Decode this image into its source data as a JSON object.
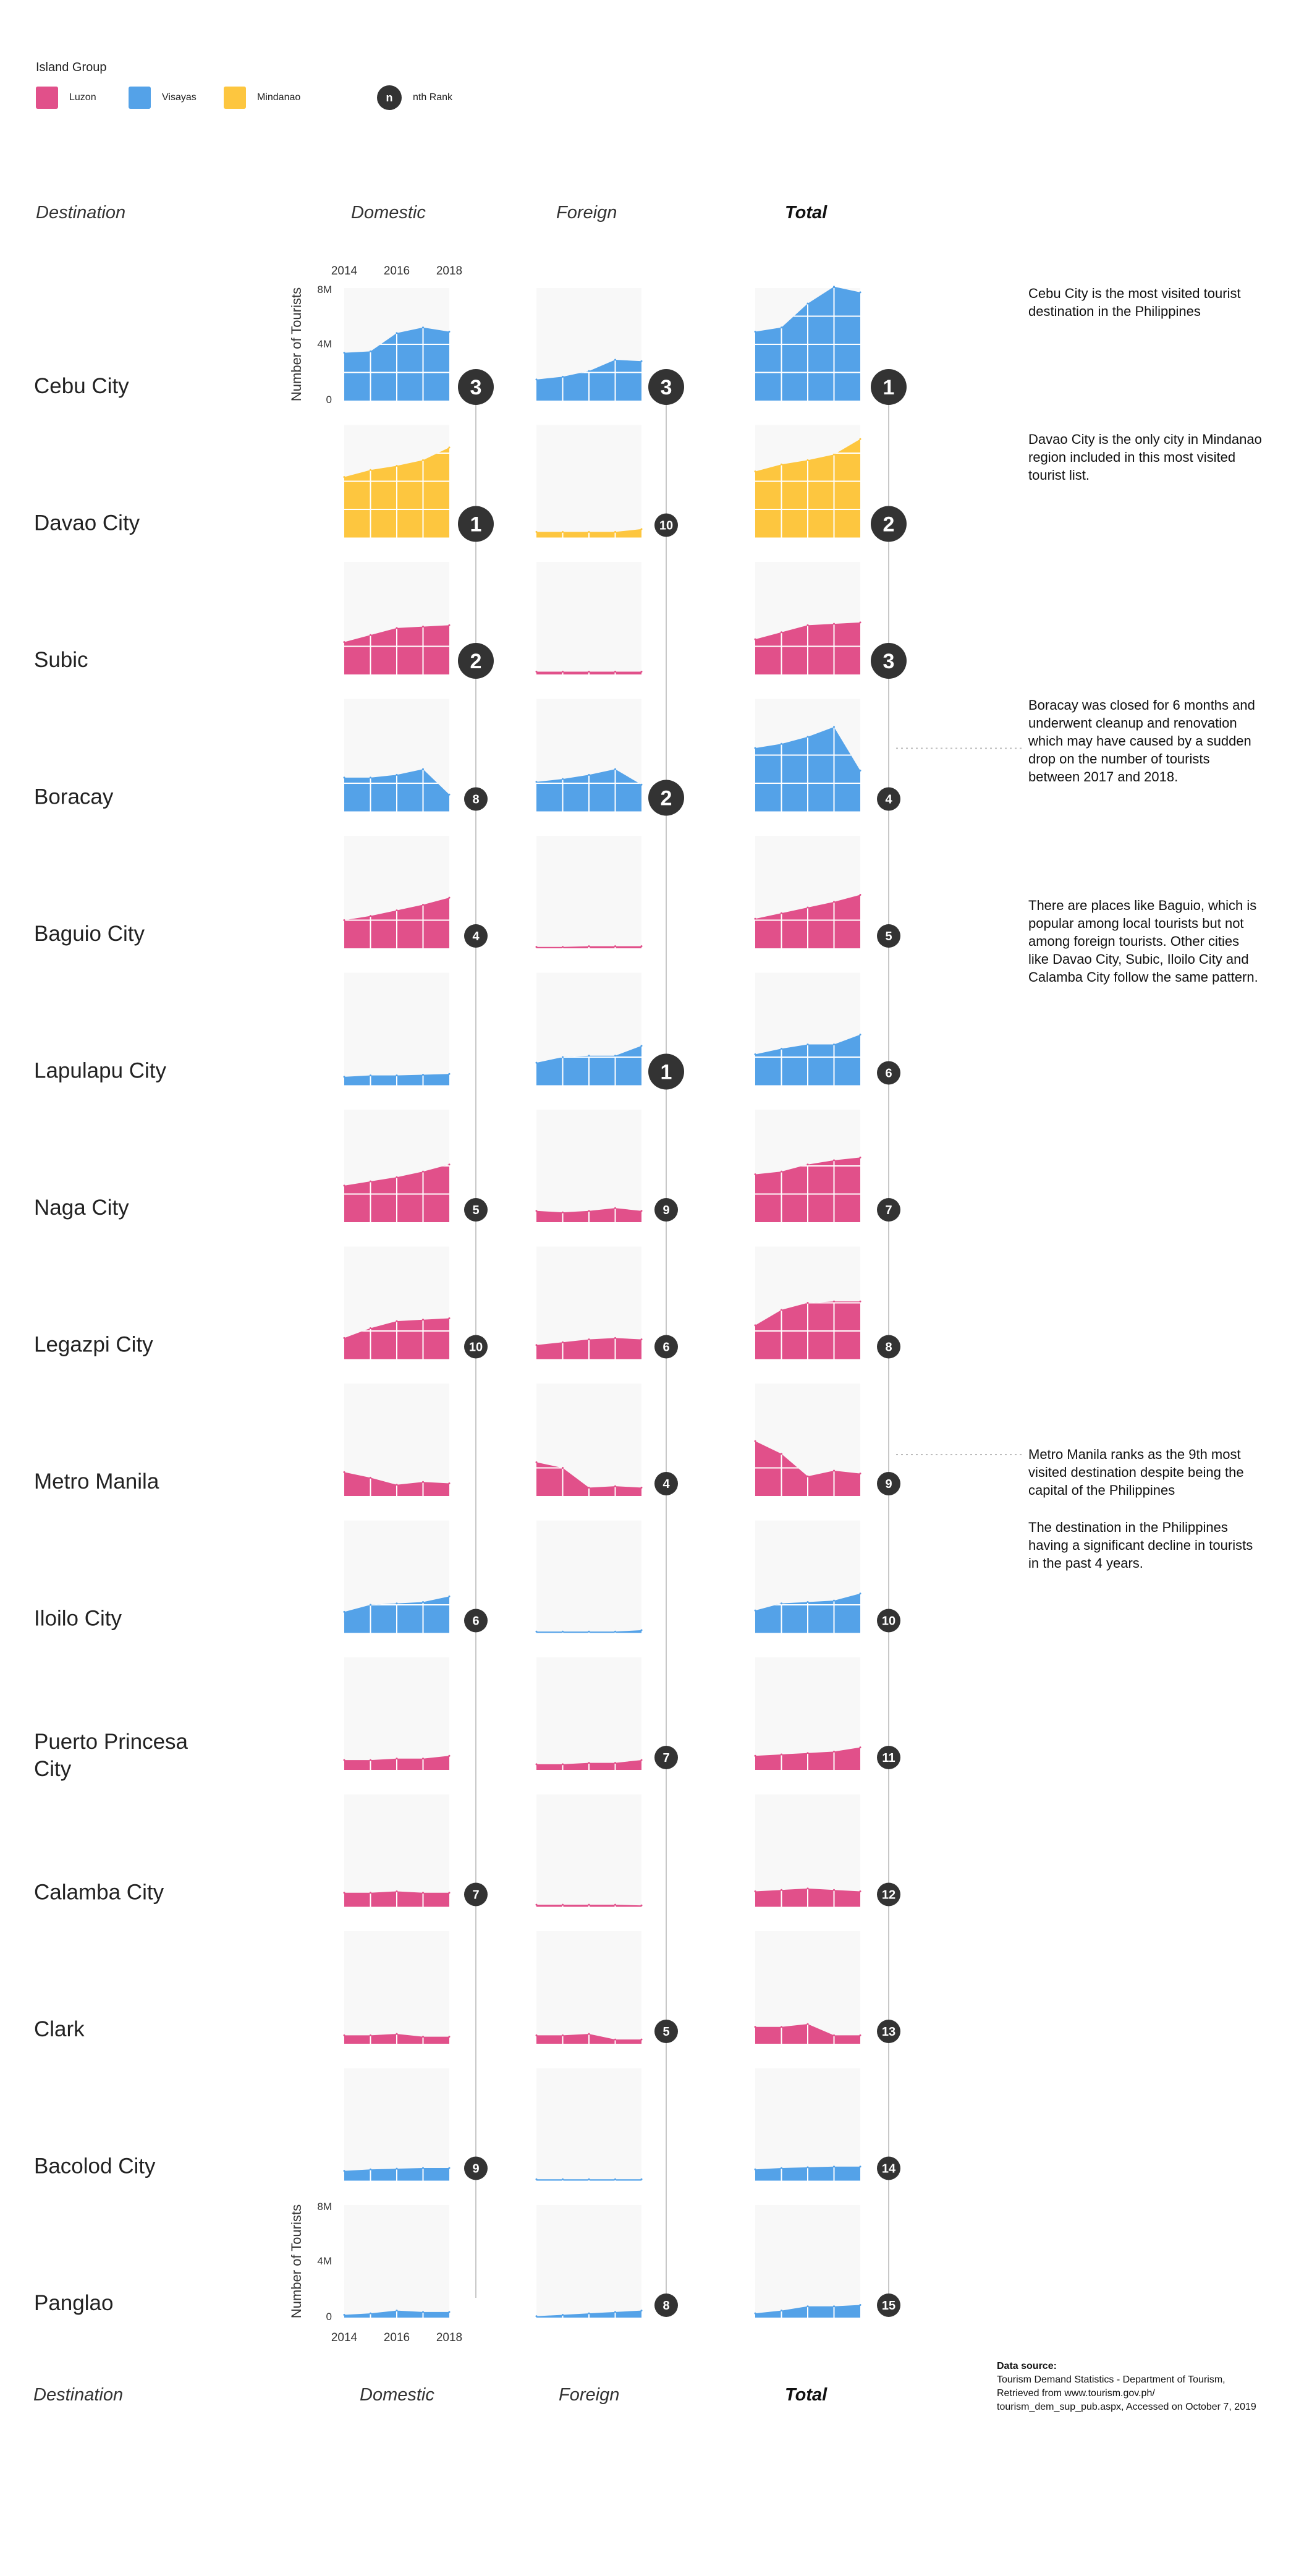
{
  "legend": {
    "title": "Island Group",
    "items": [
      {
        "label": "Luzon",
        "color": "#e1508a"
      },
      {
        "label": "Visayas",
        "color": "#54a2e8"
      },
      {
        "label": "Mindanao",
        "color": "#fdc63f"
      }
    ],
    "rank_symbol": "n",
    "rank_label": "nth Rank"
  },
  "columns": {
    "destination": "Destination",
    "domestic": "Domestic",
    "foreign": "Foreign",
    "total": "Total"
  },
  "axis": {
    "ylabel": "Number of Tourists",
    "years": [
      "2014",
      "2016",
      "2018"
    ],
    "yticks": [
      "8M",
      "4M",
      "0"
    ]
  },
  "notes": {
    "cebu": "Cebu City is the most visited tourist destination in the Philippines",
    "davao": "Davao City is the only city in Mindanao region included in this most visited tourist list.",
    "boracay": "Boracay was closed for 6 months and underwent cleanup and renovation which may have caused by a sudden drop on the number of tourists between 2017 and 2018.",
    "baguio": "There are places like Baguio, which is popular among local tourists but not among foreign tourists. Other cities like Davao City, Subic, Iloilo City and Calamba City follow the same pattern.",
    "manila_1": "Metro Manila ranks as the 9th most visited destination despite being the capital of the Philippines",
    "manila_2": "The destination in the Philippines having a significant decline in tourists in the past 4 years."
  },
  "source": {
    "title": "Data source:",
    "line1": "Tourism Demand Statistics - Department of Tourism,",
    "line2": "Retrieved from www.tourism.gov.ph/",
    "line3": "tourism_dem_sup_pub.aspx, Accessed on October 7, 2019"
  },
  "chart_data": {
    "type": "area",
    "x": [
      2014,
      2015,
      2016,
      2017,
      2018
    ],
    "units": "millions of tourists",
    "ylim": [
      0,
      8
    ],
    "yticks": [
      0,
      4,
      8
    ],
    "destinations": [
      {
        "name": "Cebu City",
        "island": "Visayas",
        "color": "#54a2e8",
        "domestic": [
          3.4,
          3.5,
          4.8,
          5.2,
          4.9
        ],
        "foreign": [
          1.5,
          1.7,
          2.1,
          2.9,
          2.8
        ],
        "total": [
          4.9,
          5.2,
          6.9,
          8.1,
          7.7
        ],
        "rank": {
          "domestic": "3",
          "foreign": "3",
          "total": "1"
        }
      },
      {
        "name": "Davao City",
        "island": "Mindanao",
        "color": "#fdc63f",
        "domestic": [
          4.3,
          4.8,
          5.1,
          5.5,
          6.4
        ],
        "foreign": [
          0.4,
          0.4,
          0.4,
          0.4,
          0.6
        ],
        "total": [
          4.7,
          5.2,
          5.5,
          5.9,
          7.0
        ],
        "rank": {
          "domestic": "1",
          "foreign": "10",
          "total": "2"
        }
      },
      {
        "name": "Subic",
        "island": "Luzon",
        "color": "#e1508a",
        "domestic": [
          2.3,
          2.8,
          3.3,
          3.4,
          3.5
        ],
        "foreign": [
          0.2,
          0.2,
          0.2,
          0.2,
          0.2
        ],
        "total": [
          2.5,
          3.0,
          3.5,
          3.6,
          3.7
        ],
        "rank": {
          "domestic": "2",
          "foreign": "",
          "total": "3"
        }
      },
      {
        "name": "Boracay",
        "island": "Visayas",
        "color": "#54a2e8",
        "domestic": [
          2.4,
          2.4,
          2.6,
          3.0,
          1.2
        ],
        "foreign": [
          2.1,
          2.3,
          2.6,
          3.0,
          1.9
        ],
        "total": [
          4.5,
          4.8,
          5.3,
          6.0,
          2.9
        ],
        "rank": {
          "domestic": "8",
          "foreign": "2",
          "total": "4"
        }
      },
      {
        "name": "Baguio City",
        "island": "Luzon",
        "color": "#e1508a",
        "domestic": [
          2.0,
          2.3,
          2.7,
          3.1,
          3.6
        ],
        "foreign": [
          0.1,
          0.1,
          0.15,
          0.15,
          0.15
        ],
        "total": [
          2.1,
          2.5,
          2.9,
          3.3,
          3.8
        ],
        "rank": {
          "domestic": "4",
          "foreign": "",
          "total": "5"
        }
      },
      {
        "name": "Lapulapu City",
        "island": "Visayas",
        "color": "#54a2e8",
        "domestic": [
          0.6,
          0.7,
          0.7,
          0.75,
          0.8
        ],
        "foreign": [
          1.6,
          2.0,
          2.1,
          2.1,
          2.8
        ],
        "total": [
          2.2,
          2.6,
          2.9,
          2.9,
          3.6
        ],
        "rank": {
          "domestic": "",
          "foreign": "1",
          "total": "6"
        }
      },
      {
        "name": "Naga City",
        "island": "Luzon",
        "color": "#e1508a",
        "domestic": [
          2.6,
          2.9,
          3.2,
          3.6,
          4.1
        ],
        "foreign": [
          0.8,
          0.7,
          0.8,
          1.0,
          0.8
        ],
        "total": [
          3.4,
          3.6,
          4.1,
          4.4,
          4.6
        ],
        "rank": {
          "domestic": "5",
          "foreign": "9",
          "total": "7"
        }
      },
      {
        "name": "Legazpi City",
        "island": "Luzon",
        "color": "#e1508a",
        "domestic": [
          1.5,
          2.2,
          2.7,
          2.8,
          2.9
        ],
        "foreign": [
          1.0,
          1.2,
          1.4,
          1.5,
          1.4
        ],
        "total": [
          2.4,
          3.5,
          4.0,
          4.1,
          4.1
        ],
        "rank": {
          "domestic": "10",
          "foreign": "6",
          "total": "8"
        }
      },
      {
        "name": "Metro Manila",
        "island": "Luzon",
        "color": "#e1508a",
        "domestic": [
          1.7,
          1.3,
          0.8,
          1.0,
          0.9
        ],
        "foreign": [
          2.4,
          2.0,
          0.6,
          0.7,
          0.6
        ],
        "total": [
          3.9,
          3.0,
          1.4,
          1.8,
          1.6
        ],
        "rank": {
          "domestic": "",
          "foreign": "4",
          "total": "9"
        }
      },
      {
        "name": "Iloilo City",
        "island": "Visayas",
        "color": "#54a2e8",
        "domestic": [
          1.5,
          2.0,
          2.1,
          2.2,
          2.6
        ],
        "foreign": [
          0.1,
          0.1,
          0.1,
          0.1,
          0.2
        ],
        "total": [
          1.6,
          2.1,
          2.2,
          2.3,
          2.8
        ],
        "rank": {
          "domestic": "6",
          "foreign": "",
          "total": "10"
        }
      },
      {
        "name": "Puerto Princesa City",
        "island": "Luzon",
        "color": "#e1508a",
        "domestic": [
          0.7,
          0.7,
          0.8,
          0.8,
          1.0
        ],
        "foreign": [
          0.4,
          0.4,
          0.5,
          0.5,
          0.7
        ],
        "total": [
          1.0,
          1.1,
          1.2,
          1.3,
          1.6
        ],
        "rank": {
          "domestic": "",
          "foreign": "7",
          "total": "11"
        }
      },
      {
        "name": "Calamba City",
        "island": "Luzon",
        "color": "#e1508a",
        "domestic": [
          1.0,
          1.0,
          1.1,
          1.0,
          1.0
        ],
        "foreign": [
          0.15,
          0.15,
          0.15,
          0.15,
          0.1
        ],
        "total": [
          1.1,
          1.2,
          1.3,
          1.2,
          1.1
        ],
        "rank": {
          "domestic": "7",
          "foreign": "",
          "total": "12"
        }
      },
      {
        "name": "Clark",
        "island": "Luzon",
        "color": "#e1508a",
        "domestic": [
          0.6,
          0.6,
          0.7,
          0.5,
          0.5
        ],
        "foreign": [
          0.6,
          0.6,
          0.7,
          0.3,
          0.3
        ],
        "total": [
          1.2,
          1.2,
          1.4,
          0.6,
          0.6
        ],
        "rank": {
          "domestic": "",
          "foreign": "5",
          "total": "13"
        }
      },
      {
        "name": "Bacolod City",
        "island": "Visayas",
        "color": "#54a2e8",
        "domestic": [
          0.7,
          0.8,
          0.85,
          0.9,
          0.9
        ],
        "foreign": [
          0.1,
          0.1,
          0.1,
          0.1,
          0.1
        ],
        "total": [
          0.8,
          0.9,
          0.95,
          1.0,
          1.0
        ],
        "rank": {
          "domestic": "9",
          "foreign": "",
          "total": "14"
        }
      },
      {
        "name": "Panglao",
        "island": "Visayas",
        "color": "#54a2e8",
        "domestic": [
          0.2,
          0.3,
          0.5,
          0.4,
          0.4
        ],
        "foreign": [
          0.1,
          0.2,
          0.3,
          0.4,
          0.5
        ],
        "total": [
          0.3,
          0.5,
          0.8,
          0.8,
          0.9
        ],
        "rank": {
          "domestic": "",
          "foreign": "8",
          "total": "15"
        }
      }
    ]
  }
}
